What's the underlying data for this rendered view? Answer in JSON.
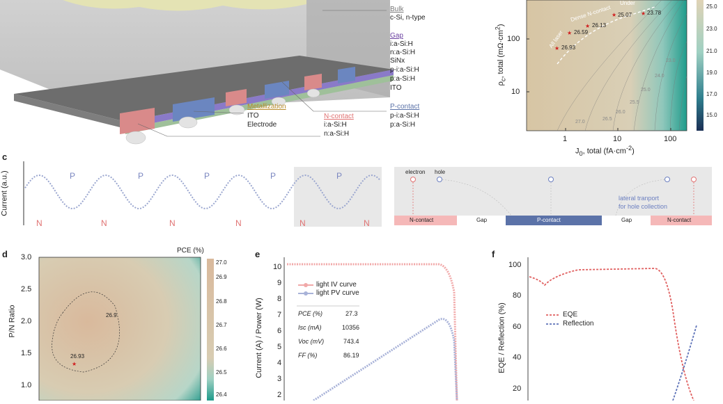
{
  "colors": {
    "ncontact": "#f1a8a8",
    "pcontact": "#5b72a8",
    "accent_red": "#e05a5a",
    "accent_blue": "#6b7fc0",
    "teal": "#1e9a8a",
    "tan": "#d9c9a8"
  },
  "panel_a": {
    "labels": {
      "bulk_title": "Bulk",
      "bulk_sub": "c-Si, n-type",
      "gap_title": "Gap",
      "gap_items": [
        "i:a-Si:H",
        "n:a-Si:H",
        "SiNx",
        "p-i:a-Si:H",
        "p:a-Si:H",
        "ITO"
      ],
      "metal_title": "Metallization",
      "metal_items": [
        "ITO",
        "Electrode"
      ],
      "ncontact_title": "N-contact",
      "ncontact_items": [
        "i:a-Si:H",
        "n:a-Si:H"
      ],
      "pcontact_title": "P-contact",
      "pcontact_items": [
        "p-i:a-Si:H",
        "p:a-Si:H"
      ]
    }
  },
  "panel_b": {
    "ylabel_main": "ρ",
    "ylabel_sub": "c",
    "ylabel_rest": ", total (mΩ·cm",
    "ylabel_sup": "2",
    "ylabel_end": ")",
    "xlabel_main": "J",
    "xlabel_sub": "0",
    "xlabel_rest": ", total (fA·cm",
    "xlabel_sup": "-2",
    "xlabel_end": ")",
    "yticks": [
      "100",
      "10"
    ],
    "xticks": [
      "1",
      "10",
      "100"
    ],
    "colorbar_ticks": [
      "25.0",
      "23.0",
      "21.0",
      "19.0",
      "17.0",
      "15.0"
    ],
    "contour_labels": [
      "27.0",
      "26.5",
      "26.0",
      "25.5",
      "25.0",
      "24.0",
      "23.0"
    ],
    "annotations": [
      "Dense N-contact",
      "All laser",
      "Under"
    ],
    "points": [
      {
        "label": "25.07"
      },
      {
        "label": "23.78"
      },
      {
        "label": "26.13"
      },
      {
        "label": "26.59"
      },
      {
        "label": "26.93"
      }
    ]
  },
  "panel_c": {
    "ylabel": "Current (a.u.)",
    "p_labels": [
      "P",
      "P",
      "P",
      "P",
      "P"
    ],
    "n_labels": [
      "N",
      "N",
      "N",
      "N",
      "N",
      "N"
    ],
    "schematic": {
      "electron": "electron",
      "hole": "hole",
      "lateral": "lateral tranport",
      "lateral2": "for hole collection",
      "bar_ncontact1": "N-contact",
      "bar_gap1": "Gap",
      "bar_pcontact": "P-contact",
      "bar_gap2": "Gap",
      "bar_ncontact2": "N-contact"
    }
  },
  "panel_d": {
    "colorbar_title": "PCE (%)",
    "ylabel": "P/N Ratio",
    "yticks": [
      "3.0",
      "2.5",
      "2.0",
      "1.5",
      "1.0"
    ],
    "colorbar_ticks": [
      "27.0",
      "26.9",
      "26.8",
      "26.7",
      "26.6",
      "26.5",
      "26.4"
    ],
    "contour_label": "26.9",
    "point_label": "26.93"
  },
  "panel_e": {
    "ylabel": "Current (A) / Power (W)",
    "yticks": [
      "10",
      "9",
      "8",
      "7",
      "6",
      "5",
      "4",
      "3",
      "2"
    ],
    "legend": [
      "light IV curve",
      "light PV curve"
    ],
    "table": [
      {
        "k": "PCE (%)",
        "v": "27.3"
      },
      {
        "k": "Isc (mA)",
        "v": "10356"
      },
      {
        "k": "Voc (mV)",
        "v": "743.4"
      },
      {
        "k": "FF (%)",
        "v": "86.19"
      }
    ]
  },
  "panel_f": {
    "ylabel": "EQE / Reflection (%)",
    "yticks": [
      "100",
      "80",
      "60",
      "40",
      "20"
    ],
    "legend": [
      "EQE",
      "Reflection"
    ]
  },
  "letters": {
    "c": "c",
    "d": "d",
    "e": "e",
    "f": "f"
  }
}
